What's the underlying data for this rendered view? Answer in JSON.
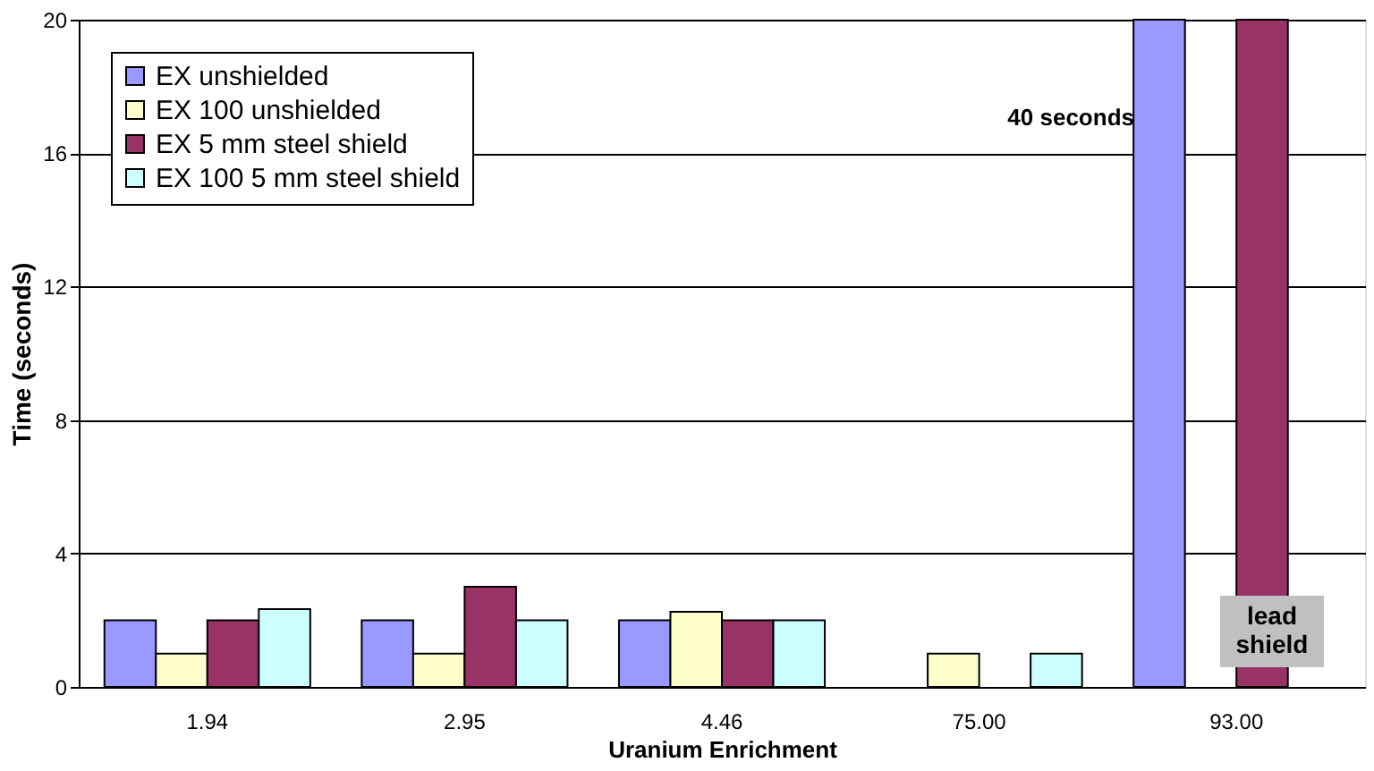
{
  "chart_data": {
    "type": "bar",
    "xlabel": "Uranium Enrichment",
    "ylabel": "Time (seconds)",
    "categories": [
      "1.94",
      "2.95",
      "4.46",
      "75.00",
      "93.00"
    ],
    "series": [
      {
        "name": "EX unshielded",
        "color": "#9999ff",
        "values": [
          2,
          2,
          2,
          null,
          20
        ]
      },
      {
        "name": "EX 100 unshielded",
        "color": "#ffffcc",
        "values": [
          1,
          1,
          2.25,
          1,
          null
        ]
      },
      {
        "name": "EX 5 mm steel shield",
        "color": "#993366",
        "values": [
          2,
          3,
          2,
          null,
          20
        ]
      },
      {
        "name": "EX 100 5 mm steel shield",
        "color": "#ccffff",
        "values": [
          2.33,
          2,
          2,
          1,
          null
        ]
      }
    ],
    "ylim": [
      0,
      20
    ],
    "yticks": [
      0,
      4,
      8,
      12,
      16,
      20
    ],
    "grid": "y",
    "legend": "top left",
    "annotations": [
      "40 seconds",
      "lead shield"
    ]
  }
}
